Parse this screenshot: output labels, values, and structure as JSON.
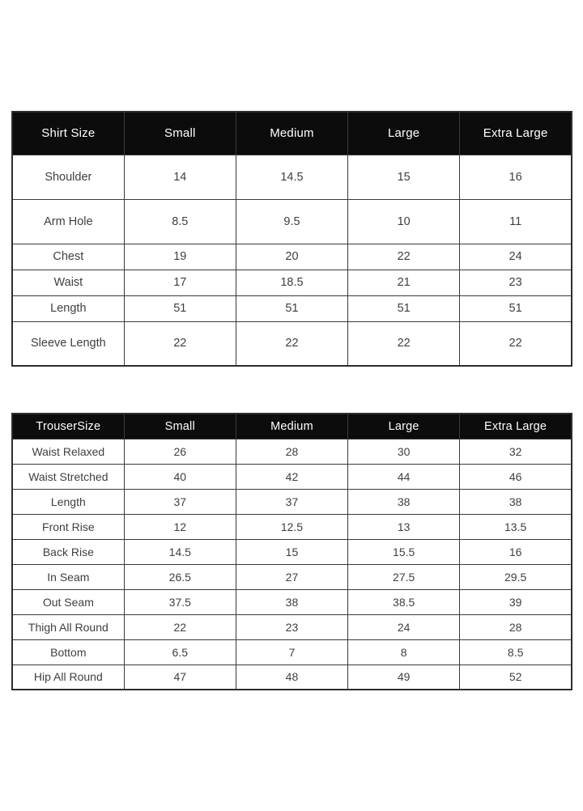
{
  "colors": {
    "page_background": "#ffffff",
    "header_background": "#0c0c0c",
    "header_text": "#ffffff",
    "body_text": "#3f3f3f",
    "border": "#3a3a3a"
  },
  "shirt_table": {
    "headers": [
      "Shirt Size",
      "Small",
      "Medium",
      "Large",
      "Extra Large"
    ],
    "rows": [
      {
        "label": "Shoulder",
        "values": [
          "14",
          "14.5",
          "15",
          "16"
        ]
      },
      {
        "label": "Arm Hole",
        "values": [
          "8.5",
          "9.5",
          "10",
          "11"
        ]
      },
      {
        "label": "Chest",
        "values": [
          "19",
          "20",
          "22",
          "24"
        ]
      },
      {
        "label": "Waist",
        "values": [
          "17",
          "18.5",
          "21",
          "23"
        ]
      },
      {
        "label": "Length",
        "values": [
          "51",
          "51",
          "51",
          "51"
        ]
      },
      {
        "label": "Sleeve Length",
        "values": [
          "22",
          "22",
          "22",
          "22"
        ]
      }
    ]
  },
  "trouser_table": {
    "headers": [
      "TrouserSize",
      "Small",
      "Medium",
      "Large",
      "Extra Large"
    ],
    "rows": [
      {
        "label": "Waist Relaxed",
        "values": [
          "26",
          "28",
          "30",
          "32"
        ]
      },
      {
        "label": "Waist Stretched",
        "values": [
          "40",
          "42",
          "44",
          "46"
        ]
      },
      {
        "label": "Length",
        "values": [
          "37",
          "37",
          "38",
          "38"
        ]
      },
      {
        "label": "Front Rise",
        "values": [
          "12",
          "12.5",
          "13",
          "13.5"
        ]
      },
      {
        "label": "Back Rise",
        "values": [
          "14.5",
          "15",
          "15.5",
          "16"
        ]
      },
      {
        "label": "In Seam",
        "values": [
          "26.5",
          "27",
          "27.5",
          "29.5"
        ]
      },
      {
        "label": "Out Seam",
        "values": [
          "37.5",
          "38",
          "38.5",
          "39"
        ]
      },
      {
        "label": "Thigh All Round",
        "values": [
          "22",
          "23",
          "24",
          "28"
        ]
      },
      {
        "label": "Bottom",
        "values": [
          "6.5",
          "7",
          "8",
          "8.5"
        ]
      },
      {
        "label": "Hip All Round",
        "values": [
          "47",
          "48",
          "49",
          "52"
        ]
      }
    ]
  }
}
